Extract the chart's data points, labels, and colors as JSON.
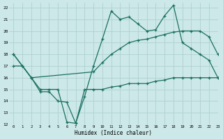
{
  "xlabel": "Humidex (Indice chaleur)",
  "background_color": "#cce8e8",
  "grid_color": "#aacccc",
  "line_color": "#1a7060",
  "xlim": [
    -0.5,
    23
  ],
  "ylim": [
    12,
    22.4
  ],
  "xticks": [
    0,
    1,
    2,
    3,
    4,
    5,
    6,
    7,
    8,
    9,
    10,
    11,
    12,
    13,
    14,
    15,
    16,
    17,
    18,
    19,
    20,
    21,
    22,
    23
  ],
  "yticks": [
    12,
    13,
    14,
    15,
    16,
    17,
    18,
    19,
    20,
    21,
    22
  ],
  "line1_x": [
    0,
    1,
    2,
    3,
    4,
    5,
    6,
    7,
    8,
    9,
    10,
    11,
    12,
    13,
    14,
    15,
    16,
    17,
    18,
    19,
    20,
    21,
    22,
    23
  ],
  "line1_y": [
    18,
    17,
    16,
    14.8,
    14.8,
    14,
    13.9,
    12.1,
    14.4,
    17,
    19.3,
    21.7,
    21,
    21.2,
    20.6,
    20,
    20.1,
    21.3,
    22.2,
    19,
    18.5,
    18,
    17.5,
    16
  ],
  "line2_x": [
    0,
    2,
    9,
    10,
    11,
    12,
    13,
    14,
    15,
    16,
    17,
    18,
    19,
    20,
    21,
    22,
    23
  ],
  "line2_y": [
    18,
    16,
    16.5,
    17.3,
    18,
    18.5,
    19,
    19.2,
    19.3,
    19.5,
    19.7,
    19.9,
    20,
    20,
    20,
    19.5,
    18
  ],
  "line3_x": [
    0,
    1,
    2,
    3,
    4,
    5,
    6,
    7,
    8,
    9,
    10,
    11,
    12,
    13,
    14,
    15,
    16,
    17,
    18,
    19,
    20,
    21,
    22,
    23
  ],
  "line3_y": [
    17,
    17,
    16,
    15,
    15,
    15,
    12.2,
    12.1,
    15,
    15,
    15,
    15.2,
    15.3,
    15.5,
    15.5,
    15.5,
    15.7,
    15.8,
    16,
    16,
    16,
    16,
    16,
    16
  ]
}
